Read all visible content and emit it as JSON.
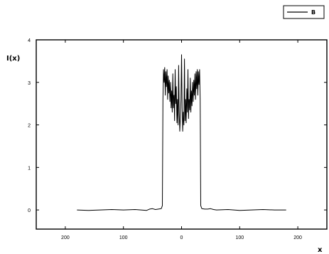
{
  "chart_data": {
    "type": "line",
    "title": "",
    "xlabel": "x",
    "ylabel": "I(x)",
    "xlim": [
      -250,
      250
    ],
    "ylim": [
      -0.45,
      4
    ],
    "xticks": [
      -200,
      -100,
      0,
      100,
      200
    ],
    "xtick_labels": [
      "200",
      "100",
      "0",
      "100",
      "200"
    ],
    "yticks": [
      0,
      1,
      2,
      3,
      4
    ],
    "ytick_labels": [
      "0",
      "1",
      "2",
      "3",
      "4"
    ],
    "grid": false,
    "legend_position": "top-right",
    "series": [
      {
        "name": "B",
        "color": "#000000",
        "points": [
          [
            -180,
            0.0
          ],
          [
            -160,
            -0.01
          ],
          [
            -140,
            0.0
          ],
          [
            -120,
            0.01
          ],
          [
            -100,
            0.0
          ],
          [
            -80,
            0.01
          ],
          [
            -60,
            -0.01
          ],
          [
            -55,
            0.02
          ],
          [
            -50,
            0.03
          ],
          [
            -45,
            0.01
          ],
          [
            -40,
            0.02
          ],
          [
            -35,
            0.03
          ],
          [
            -33,
            0.1
          ],
          [
            -32,
            2.6
          ],
          [
            -31,
            3.3
          ],
          [
            -30,
            3.0
          ],
          [
            -29,
            3.35
          ],
          [
            -28,
            2.7
          ],
          [
            -27,
            3.25
          ],
          [
            -26,
            2.9
          ],
          [
            -25,
            3.3
          ],
          [
            -24,
            2.6
          ],
          [
            -23,
            3.15
          ],
          [
            -22,
            2.75
          ],
          [
            -21,
            3.05
          ],
          [
            -20,
            2.55
          ],
          [
            -19,
            3.0
          ],
          [
            -18,
            2.4
          ],
          [
            -17,
            2.8
          ],
          [
            -16,
            2.3
          ],
          [
            -15,
            3.2
          ],
          [
            -14,
            2.4
          ],
          [
            -13,
            2.7
          ],
          [
            -12,
            2.1
          ],
          [
            -11,
            3.3
          ],
          [
            -10,
            2.5
          ],
          [
            -9,
            2.9
          ],
          [
            -8,
            2.05
          ],
          [
            -7,
            2.6
          ],
          [
            -6,
            2.0
          ],
          [
            -5,
            3.4
          ],
          [
            -4,
            2.3
          ],
          [
            -3,
            1.85
          ],
          [
            -2,
            2.2
          ],
          [
            -1,
            2.6
          ],
          [
            0,
            3.65
          ],
          [
            1,
            2.4
          ],
          [
            2,
            1.85
          ],
          [
            3,
            2.3
          ],
          [
            4,
            2.0
          ],
          [
            5,
            3.55
          ],
          [
            6,
            2.1
          ],
          [
            7,
            2.6
          ],
          [
            8,
            2.05
          ],
          [
            9,
            2.85
          ],
          [
            10,
            2.3
          ],
          [
            11,
            3.3
          ],
          [
            12,
            2.15
          ],
          [
            13,
            2.6
          ],
          [
            14,
            2.35
          ],
          [
            15,
            3.1
          ],
          [
            16,
            2.3
          ],
          [
            17,
            2.8
          ],
          [
            18,
            2.45
          ],
          [
            19,
            3.0
          ],
          [
            20,
            2.55
          ],
          [
            21,
            3.05
          ],
          [
            22,
            2.7
          ],
          [
            23,
            3.2
          ],
          [
            24,
            2.6
          ],
          [
            25,
            3.25
          ],
          [
            26,
            2.85
          ],
          [
            27,
            3.3
          ],
          [
            28,
            2.7
          ],
          [
            29,
            3.25
          ],
          [
            30,
            2.95
          ],
          [
            31,
            3.3
          ],
          [
            32,
            2.6
          ],
          [
            33,
            0.1
          ],
          [
            35,
            0.03
          ],
          [
            40,
            0.02
          ],
          [
            45,
            0.02
          ],
          [
            50,
            0.03
          ],
          [
            55,
            0.01
          ],
          [
            60,
            0.0
          ],
          [
            80,
            0.01
          ],
          [
            100,
            -0.01
          ],
          [
            120,
            0.0
          ],
          [
            140,
            0.01
          ],
          [
            160,
            0.0
          ],
          [
            180,
            0.0
          ]
        ]
      }
    ]
  }
}
